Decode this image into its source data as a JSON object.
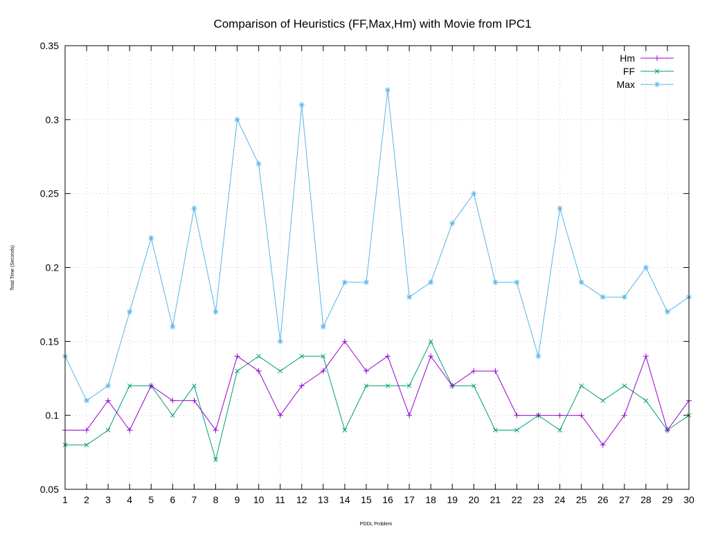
{
  "chart_data": {
    "type": "line",
    "title": "Comparison of Heuristics (FF,Max,Hm) with Movie from IPC1",
    "xlabel": "PDDL Problem",
    "ylabel": "Total Time (Seconds)",
    "x": [
      1,
      2,
      3,
      4,
      5,
      6,
      7,
      8,
      9,
      10,
      11,
      12,
      13,
      14,
      15,
      16,
      17,
      18,
      19,
      20,
      21,
      22,
      23,
      24,
      25,
      26,
      27,
      28,
      29,
      30
    ],
    "xlim": [
      1,
      30
    ],
    "ylim": [
      0.05,
      0.35
    ],
    "yticks": [
      "0.05",
      "0.1",
      "0.15",
      "0.2",
      "0.25",
      "0.3",
      "0.35"
    ],
    "grid": true,
    "legend_position": "top-right",
    "series": [
      {
        "name": "Hm",
        "color": "#9400d3",
        "marker": "plus",
        "values": [
          0.09,
          0.09,
          0.11,
          0.09,
          0.12,
          0.11,
          0.11,
          0.09,
          0.14,
          0.13,
          0.1,
          0.12,
          0.13,
          0.15,
          0.13,
          0.14,
          0.1,
          0.14,
          0.12,
          0.13,
          0.13,
          0.1,
          0.1,
          0.1,
          0.1,
          0.08,
          0.1,
          0.14,
          0.09,
          0.11
        ]
      },
      {
        "name": "FF",
        "color": "#009e73",
        "marker": "cross",
        "values": [
          0.08,
          0.08,
          0.09,
          0.12,
          0.12,
          0.1,
          0.12,
          0.07,
          0.13,
          0.14,
          0.13,
          0.14,
          0.14,
          0.09,
          0.12,
          0.12,
          0.12,
          0.15,
          0.12,
          0.12,
          0.09,
          0.09,
          0.1,
          0.09,
          0.12,
          0.11,
          0.12,
          0.11,
          0.09,
          0.1
        ]
      },
      {
        "name": "Max",
        "color": "#56b4e9",
        "marker": "star",
        "values": [
          0.14,
          0.11,
          0.12,
          0.17,
          0.22,
          0.16,
          0.24,
          0.17,
          0.3,
          0.27,
          0.15,
          0.31,
          0.16,
          0.19,
          0.19,
          0.32,
          0.18,
          0.19,
          0.23,
          0.25,
          0.19,
          0.19,
          0.14,
          0.24,
          0.19,
          0.18,
          0.18,
          0.2,
          0.17,
          0.18
        ]
      }
    ]
  }
}
